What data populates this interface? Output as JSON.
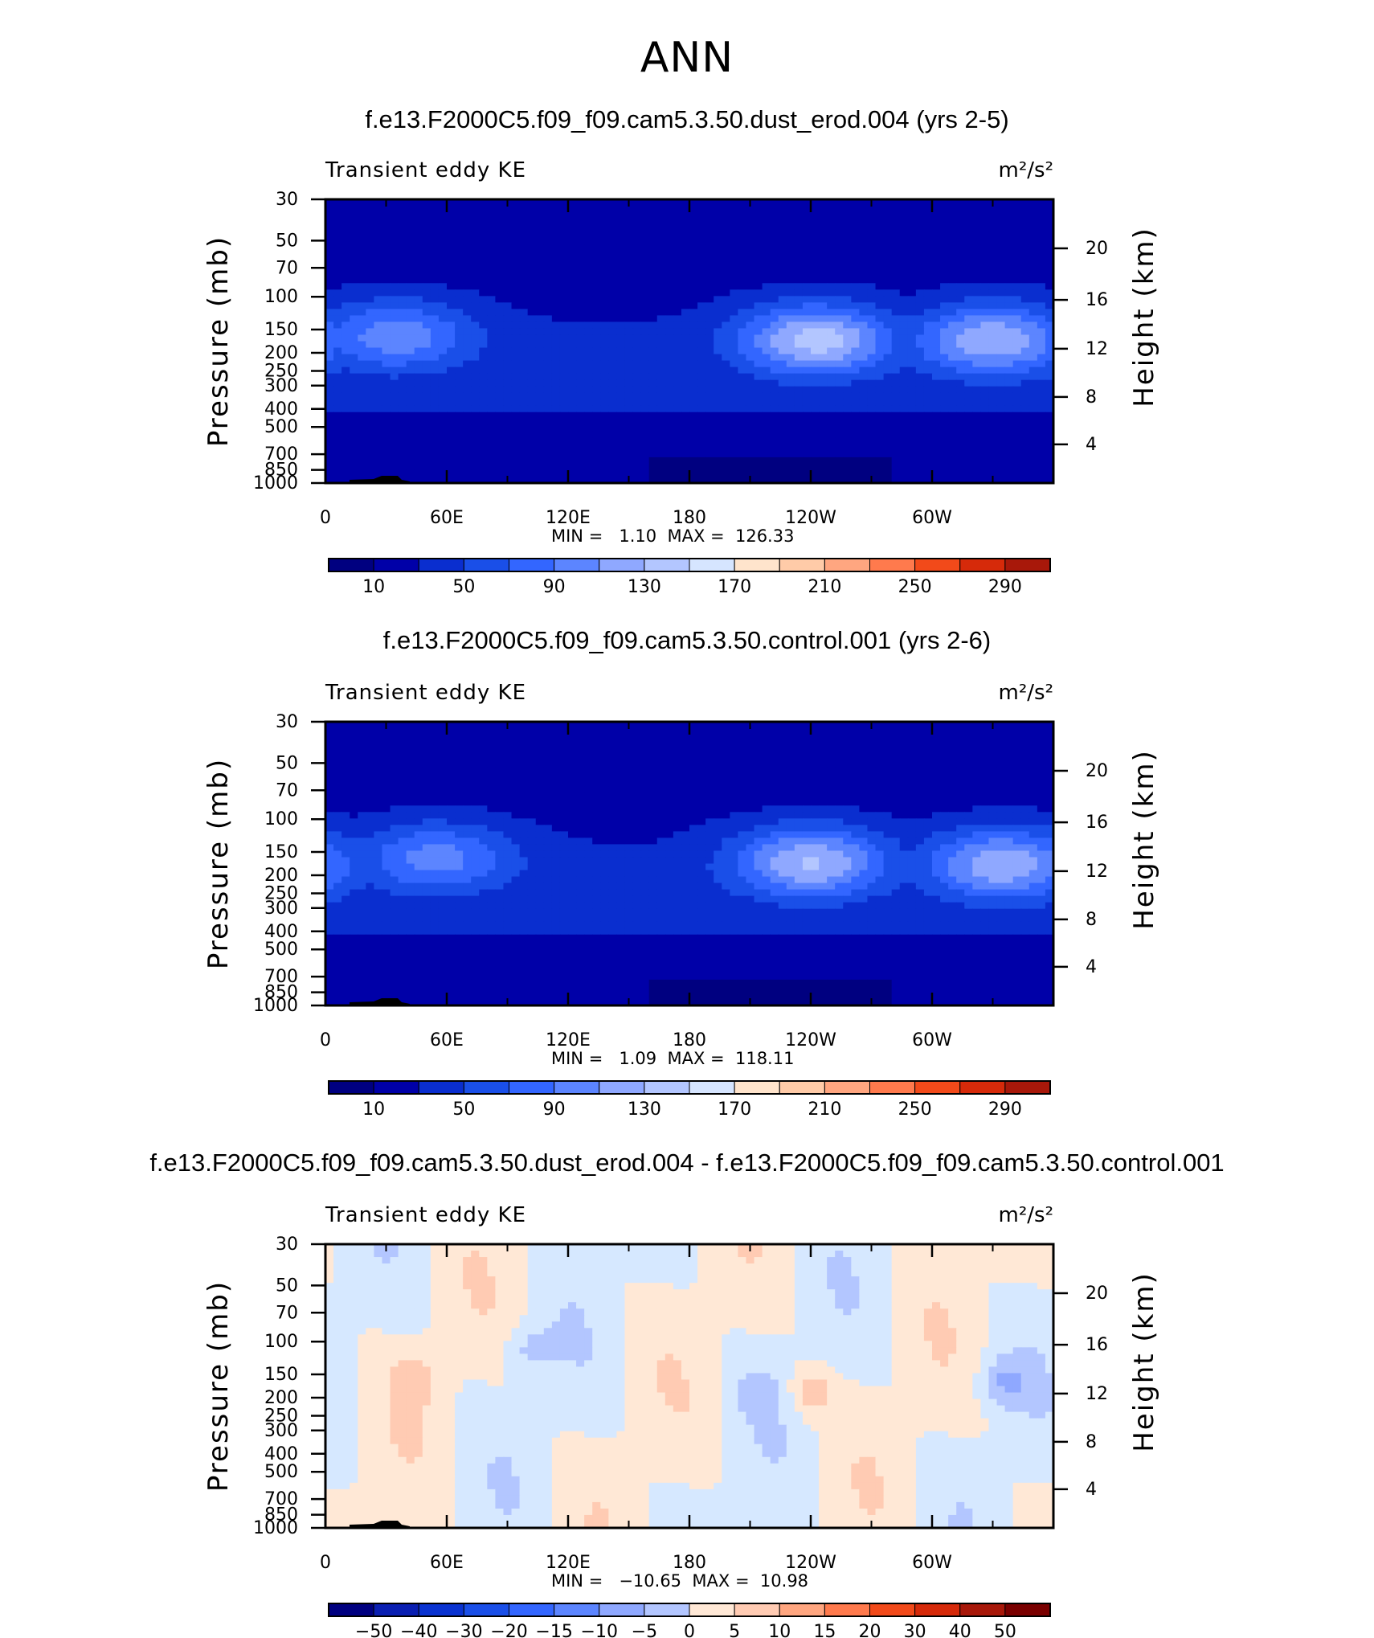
{
  "figure": {
    "season": "ANN"
  },
  "colors": {
    "fill_palette": [
      "#000080",
      "#0000A8",
      "#0A2ECF",
      "#1A4FE8",
      "#3366FF",
      "#5C85FF",
      "#8FA8FF",
      "#B3C6FF",
      "#D6E5FF",
      "#FFE4CC",
      "#FFCBA8",
      "#FFA680",
      "#FF7A4D",
      "#F24A1A",
      "#D62A0A",
      "#A8180A",
      "#7A0000"
    ],
    "diff_palette": [
      "#000080",
      "#0A1FB2",
      "#0A33D1",
      "#1A4FE8",
      "#3366FF",
      "#5C85FF",
      "#8FA8FF",
      "#B3C6FF",
      "#D6E8FF",
      "#FFE8D6",
      "#FFCBB3",
      "#FFA680",
      "#FF7A4D",
      "#F24A1A",
      "#D62A0A",
      "#A8180A",
      "#7A0000"
    ]
  },
  "chart_data": [
    {
      "type": "heatmap",
      "title": "f.e13.F2000C5.f09_f09.cam5.3.50.dust_erod.004 (yrs 2-5)",
      "left_label": "Transient eddy KE",
      "units": "m²/s²",
      "ylabel": "Pressure (mb)",
      "ylabel2": "Height (km)",
      "x_ticks": [
        "0",
        "60E",
        "120E",
        "180",
        "120W",
        "60W"
      ],
      "y_ticks": [
        "30",
        "50",
        "70",
        "100",
        "150",
        "200",
        "250",
        "300",
        "400",
        "500",
        "700",
        "850",
        "1000"
      ],
      "y2_ticks": [
        "20",
        "16",
        "12",
        "8",
        "4"
      ],
      "stats": {
        "min_label": "MIN =",
        "min": "1.10",
        "max_label": "MAX =",
        "max": "126.33"
      },
      "colorbar_labels": [
        "10",
        "50",
        "90",
        "130",
        "170",
        "210",
        "250",
        "290"
      ],
      "jets": [
        {
          "lon": 35,
          "p": 160,
          "peak": 90
        },
        {
          "lon": 243,
          "p": 170,
          "peak": 126
        },
        {
          "lon": 330,
          "p": 170,
          "peak": 115
        }
      ]
    },
    {
      "type": "heatmap",
      "title": "f.e13.F2000C5.f09_f09.cam5.3.50.control.001 (yrs 2-6)",
      "left_label": "Transient eddy KE",
      "units": "m²/s²",
      "ylabel": "Pressure (mb)",
      "ylabel2": "Height (km)",
      "x_ticks": [
        "0",
        "60E",
        "120E",
        "180",
        "120W",
        "60W"
      ],
      "y_ticks": [
        "30",
        "50",
        "70",
        "100",
        "150",
        "200",
        "250",
        "300",
        "400",
        "500",
        "700",
        "850",
        "1000"
      ],
      "y2_ticks": [
        "20",
        "16",
        "12",
        "8",
        "4"
      ],
      "stats": {
        "min_label": "MIN =",
        "min": "1.09",
        "max_label": "MAX =",
        "max": "118.11"
      },
      "colorbar_labels": [
        "10",
        "50",
        "90",
        "130",
        "170",
        "210",
        "250",
        "290"
      ],
      "jets": [
        {
          "lon": 55,
          "p": 160,
          "peak": 85
        },
        {
          "lon": 240,
          "p": 170,
          "peak": 118
        },
        {
          "lon": 335,
          "p": 175,
          "peak": 112
        }
      ]
    },
    {
      "type": "heatmap",
      "title": "f.e13.F2000C5.f09_f09.cam5.3.50.dust_erod.004 - f.e13.F2000C5.f09_f09.cam5.3.50.control.001",
      "left_label": "Transient eddy KE",
      "units": "m²/s²",
      "ylabel": "Pressure (mb)",
      "ylabel2": "Height (km)",
      "x_ticks": [
        "0",
        "60E",
        "120E",
        "180",
        "120W",
        "60W"
      ],
      "y_ticks": [
        "30",
        "50",
        "70",
        "100",
        "150",
        "200",
        "250",
        "300",
        "400",
        "500",
        "700",
        "850",
        "1000"
      ],
      "y2_ticks": [
        "20",
        "16",
        "12",
        "8",
        "4"
      ],
      "stats": {
        "min_label": "MIN =",
        "min": "−10.65",
        "max_label": "MAX =",
        "max": "10.98"
      },
      "colorbar_labels": [
        "−50",
        "−40",
        "−30",
        "−20",
        "−15",
        "−10",
        "−5",
        "0",
        "5",
        "10",
        "15",
        "20",
        "30",
        "40",
        "50"
      ]
    }
  ]
}
